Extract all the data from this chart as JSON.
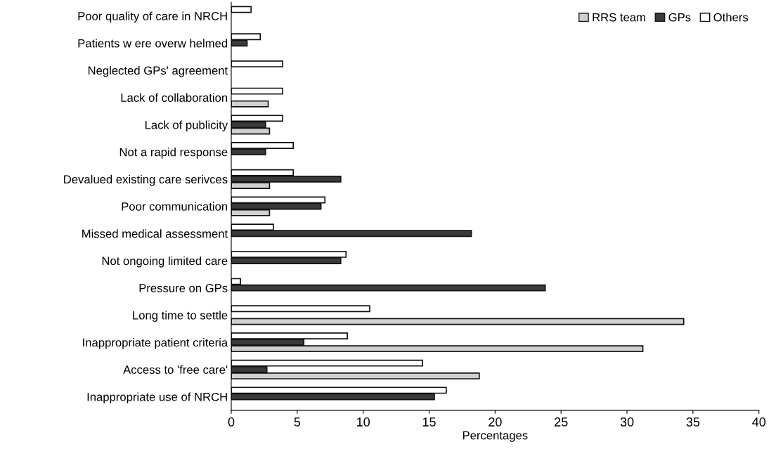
{
  "chart_data": {
    "type": "bar",
    "orientation": "horizontal",
    "xlabel": "Percentages",
    "categories": [
      "Poor quality of care in NRCH",
      "Patients w ere overw helmed",
      "Neglected GPs' agreement",
      "Lack of collaboration",
      "Lack of publicity",
      "Not a rapid response",
      "Devalued existing care serivces",
      "Poor communication",
      "Missed medical assessment",
      "Not ongoing limited care",
      "Pressure on GPs",
      "Long time to settle",
      "Inappropriate patient criteria",
      "Access to 'free care'",
      "Inappropriate use of NRCH"
    ],
    "series": [
      {
        "name": "RRS team",
        "color": "#d0d0d0",
        "values": [
          null,
          null,
          null,
          2.8,
          2.9,
          null,
          2.9,
          2.9,
          null,
          null,
          null,
          34.3,
          31.2,
          18.8,
          null
        ]
      },
      {
        "name": "GPs",
        "color": "#3a3a3a",
        "values": [
          null,
          1.2,
          null,
          null,
          2.6,
          2.6,
          8.3,
          6.8,
          18.2,
          8.3,
          23.8,
          null,
          5.5,
          2.7,
          15.4
        ]
      },
      {
        "name": "Others",
        "color": "#ffffff",
        "values": [
          1.5,
          2.2,
          3.9,
          3.9,
          3.9,
          4.7,
          4.7,
          7.1,
          3.2,
          8.7,
          0.7,
          10.5,
          8.8,
          14.5,
          16.3
        ]
      }
    ],
    "xlim": [
      0,
      40
    ],
    "xticks": [
      0,
      5,
      10,
      15,
      20,
      25,
      30,
      35,
      40
    ],
    "grid": false,
    "legend": "top right"
  }
}
